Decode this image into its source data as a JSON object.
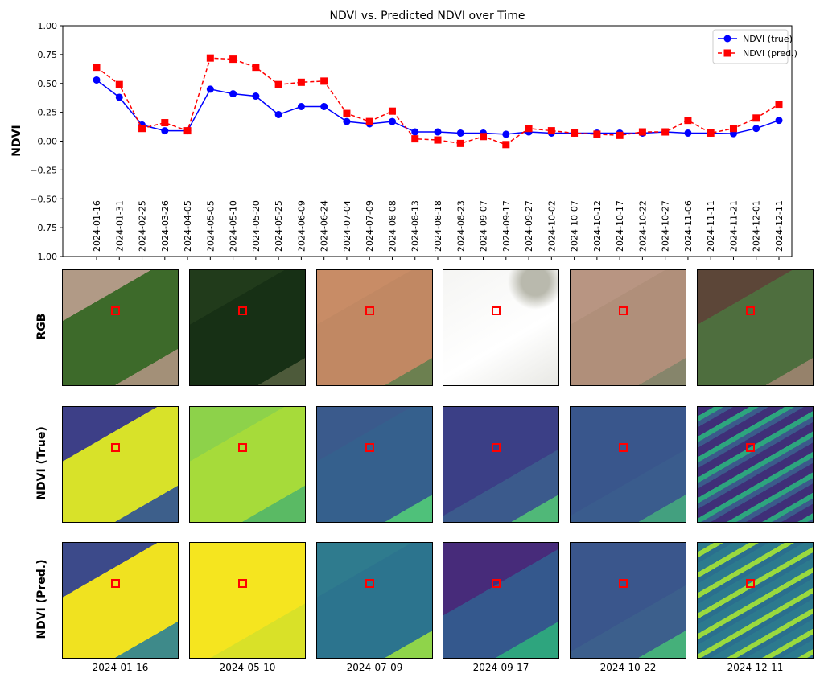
{
  "chart_data": {
    "type": "line",
    "title": "NDVI vs. Predicted NDVI over Time",
    "xlabel": "",
    "ylabel": "NDVI",
    "ylim": [
      -1.0,
      1.0
    ],
    "yticks": [
      "1.00",
      "0.75",
      "0.50",
      "0.25",
      "0.00",
      "−0.25",
      "−0.50",
      "−0.75",
      "−1.00"
    ],
    "ytick_values": [
      1.0,
      0.75,
      0.5,
      0.25,
      0.0,
      -0.25,
      -0.5,
      -0.75,
      -1.0
    ],
    "legend_placement": "top-right",
    "x": [
      "2024-01-16",
      "2024-01-31",
      "2024-02-25",
      "2024-03-26",
      "2024-04-05",
      "2024-05-05",
      "2024-05-10",
      "2024-05-20",
      "2024-05-25",
      "2024-06-09",
      "2024-06-24",
      "2024-07-04",
      "2024-07-09",
      "2024-08-08",
      "2024-08-13",
      "2024-08-18",
      "2024-08-23",
      "2024-09-07",
      "2024-09-17",
      "2024-09-27",
      "2024-10-02",
      "2024-10-07",
      "2024-10-12",
      "2024-10-17",
      "2024-10-22",
      "2024-10-27",
      "2024-11-06",
      "2024-11-11",
      "2024-11-21",
      "2024-12-01",
      "2024-12-11"
    ],
    "series": [
      {
        "name": "NDVI (true)",
        "color": "#0000ff",
        "marker": "circle",
        "linestyle": "solid",
        "values": [
          0.53,
          0.38,
          0.14,
          0.09,
          0.09,
          0.45,
          0.41,
          0.39,
          0.23,
          0.3,
          0.3,
          0.17,
          0.15,
          0.17,
          0.08,
          0.08,
          0.07,
          0.07,
          0.06,
          0.08,
          0.07,
          0.07,
          0.07,
          0.07,
          0.07,
          0.08,
          0.07,
          0.07,
          0.065,
          0.11,
          0.18
        ]
      },
      {
        "name": "NDVI (pred.)",
        "color": "#ff0000",
        "marker": "square",
        "linestyle": "dashed",
        "values": [
          0.64,
          0.49,
          0.11,
          0.16,
          0.09,
          0.72,
          0.71,
          0.64,
          0.49,
          0.51,
          0.52,
          0.24,
          0.17,
          0.26,
          0.02,
          0.01,
          -0.02,
          0.04,
          -0.03,
          0.11,
          0.09,
          0.07,
          0.06,
          0.05,
          0.08,
          0.08,
          0.18,
          0.07,
          0.11,
          0.2,
          0.32
        ]
      }
    ]
  },
  "grid": {
    "row_labels": [
      "RGB",
      "NDVI (True)",
      "NDVI (Pred.)"
    ],
    "column_dates": [
      "2024-01-16",
      "2024-05-10",
      "2024-07-09",
      "2024-09-17",
      "2024-10-22",
      "2024-12-11"
    ]
  }
}
